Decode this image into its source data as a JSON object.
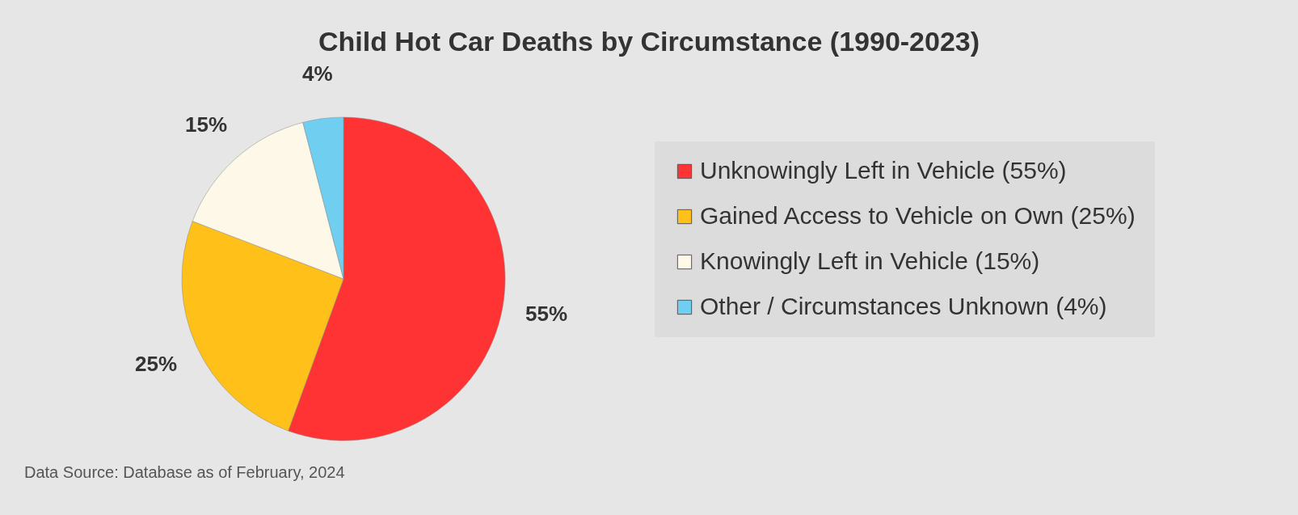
{
  "chart_data": {
    "type": "pie",
    "title": "Child Hot Car Deaths by Circumstance (1990-2023)",
    "categories": [
      "Unknowingly Left in Vehicle (55%)",
      "Gained Access to Vehicle on Own (25%)",
      "Knowingly Left in Vehicle (15%)",
      "Other / Circumstances Unknown (4%)"
    ],
    "values": [
      55,
      25,
      15,
      4
    ],
    "colors": [
      "#ff3333",
      "#ffc01a",
      "#fdf8e8",
      "#70cff0"
    ],
    "value_labels": [
      "55%",
      "25%",
      "15%",
      "4%"
    ],
    "legend": "right",
    "annotations": [
      "Data Source: Database as of February, 2024"
    ]
  }
}
